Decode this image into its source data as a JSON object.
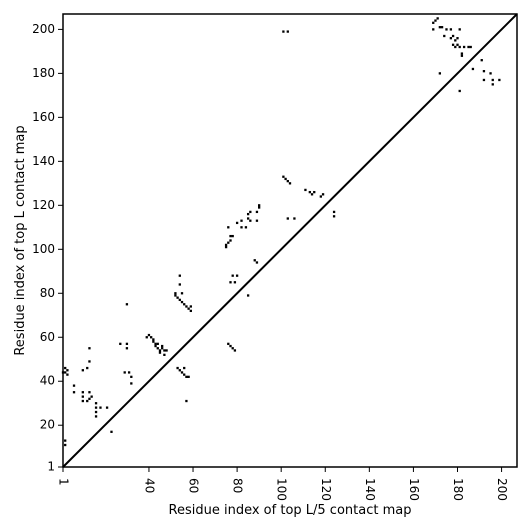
{
  "chart_data": {
    "type": "scatter",
    "title": "",
    "xlabel": "Residue index of top L/5 contact map",
    "ylabel": "Residue index of top L contact map",
    "xlim": [
      1,
      207
    ],
    "ylim": [
      1,
      207
    ],
    "x_ticks": [
      1,
      40,
      60,
      80,
      100,
      120,
      140,
      160,
      180,
      200
    ],
    "x_tick_labels": [
      "1",
      "40",
      "60",
      "80",
      "100",
      "120",
      "140",
      "160",
      "180",
      "200"
    ],
    "y_ticks": [
      1,
      20,
      40,
      60,
      80,
      100,
      120,
      140,
      160,
      180,
      200
    ],
    "y_tick_labels": [
      "1",
      "20",
      "40",
      "60",
      "80",
      "100",
      "120",
      "140",
      "160",
      "180",
      "200"
    ],
    "x_tick_rotation": -90,
    "grid": false,
    "diagonal_line": [
      [
        1,
        1
      ],
      [
        207,
        207
      ]
    ],
    "marker": "square",
    "marker_color": "#000000",
    "series": [
      {
        "values": [
          [
            2,
            13
          ],
          [
            2,
            11
          ],
          [
            1,
            44
          ],
          [
            2,
            44
          ],
          [
            3,
            45
          ],
          [
            2,
            46
          ],
          [
            3,
            43
          ],
          [
            6,
            38
          ],
          [
            6,
            35
          ],
          [
            10,
            35
          ],
          [
            10,
            33
          ],
          [
            10,
            31
          ],
          [
            12,
            31
          ],
          [
            13,
            32
          ],
          [
            13,
            35
          ],
          [
            14,
            33
          ],
          [
            16,
            30
          ],
          [
            16,
            28
          ],
          [
            16,
            26
          ],
          [
            16,
            24
          ],
          [
            18,
            28
          ],
          [
            21,
            28
          ],
          [
            23,
            17
          ],
          [
            13,
            55
          ],
          [
            13,
            49
          ],
          [
            10,
            45
          ],
          [
            12,
            46
          ],
          [
            27,
            57
          ],
          [
            30,
            57
          ],
          [
            30,
            55
          ],
          [
            29,
            44
          ],
          [
            31,
            44
          ],
          [
            32,
            42
          ],
          [
            32,
            39
          ],
          [
            30,
            75
          ],
          [
            39,
            60
          ],
          [
            40,
            61
          ],
          [
            41,
            60
          ],
          [
            42,
            59
          ],
          [
            42,
            58
          ],
          [
            43,
            57
          ],
          [
            43,
            56
          ],
          [
            44,
            55
          ],
          [
            45,
            54
          ],
          [
            45,
            53
          ],
          [
            46,
            56
          ],
          [
            47,
            54
          ],
          [
            47,
            52
          ],
          [
            46,
            55
          ],
          [
            44,
            57
          ],
          [
            48,
            54
          ],
          [
            52,
            80
          ],
          [
            52,
            79
          ],
          [
            53,
            78
          ],
          [
            54,
            77
          ],
          [
            55,
            76
          ],
          [
            55,
            80
          ],
          [
            56,
            75
          ],
          [
            57,
            74
          ],
          [
            58,
            73
          ],
          [
            59,
            72
          ],
          [
            59,
            74
          ],
          [
            54,
            84
          ],
          [
            54,
            88
          ],
          [
            53,
            46
          ],
          [
            54,
            45
          ],
          [
            55,
            44
          ],
          [
            56,
            46
          ],
          [
            56,
            43
          ],
          [
            57,
            42
          ],
          [
            58,
            42
          ],
          [
            57,
            31
          ],
          [
            75,
            102
          ],
          [
            75,
            101
          ],
          [
            76,
            103
          ],
          [
            77,
            104
          ],
          [
            76,
            57
          ],
          [
            77,
            56
          ],
          [
            78,
            55
          ],
          [
            79,
            54
          ],
          [
            77,
            106
          ],
          [
            78,
            106
          ],
          [
            76,
            110
          ],
          [
            77,
            85
          ],
          [
            78,
            88
          ],
          [
            79,
            85
          ],
          [
            80,
            88
          ],
          [
            80,
            112
          ],
          [
            82,
            110
          ],
          [
            82,
            113
          ],
          [
            84,
            110
          ],
          [
            85,
            116
          ],
          [
            86,
            117
          ],
          [
            85,
            114
          ],
          [
            86,
            113
          ],
          [
            88,
            95
          ],
          [
            89,
            94
          ],
          [
            89,
            113
          ],
          [
            89,
            117
          ],
          [
            90,
            119
          ],
          [
            90,
            120
          ],
          [
            85,
            79
          ],
          [
            101,
            133
          ],
          [
            102,
            132
          ],
          [
            103,
            131
          ],
          [
            104,
            130
          ],
          [
            101,
            199
          ],
          [
            103,
            199
          ],
          [
            103,
            114
          ],
          [
            106,
            114
          ],
          [
            111,
            127
          ],
          [
            113,
            126
          ],
          [
            114,
            125
          ],
          [
            115,
            126
          ],
          [
            118,
            124
          ],
          [
            119,
            125
          ],
          [
            124,
            117
          ],
          [
            124,
            115
          ],
          [
            169,
            203
          ],
          [
            170,
            204
          ],
          [
            171,
            205
          ],
          [
            169,
            200
          ],
          [
            172,
            201
          ],
          [
            173,
            201
          ],
          [
            175,
            200
          ],
          [
            177,
            200
          ],
          [
            174,
            197
          ],
          [
            177,
            196
          ],
          [
            178,
            197
          ],
          [
            179,
            195
          ],
          [
            180,
            196
          ],
          [
            181,
            200
          ],
          [
            178,
            193
          ],
          [
            179,
            192
          ],
          [
            180,
            193
          ],
          [
            181,
            192
          ],
          [
            182,
            188
          ],
          [
            182,
            189
          ],
          [
            183,
            192
          ],
          [
            185,
            192
          ],
          [
            186,
            192
          ],
          [
            187,
            182
          ],
          [
            181,
            172
          ],
          [
            172,
            180
          ],
          [
            191,
            186
          ],
          [
            192,
            181
          ],
          [
            192,
            177
          ],
          [
            195,
            180
          ],
          [
            196,
            177
          ],
          [
            196,
            175
          ],
          [
            199,
            177
          ]
        ]
      }
    ]
  }
}
